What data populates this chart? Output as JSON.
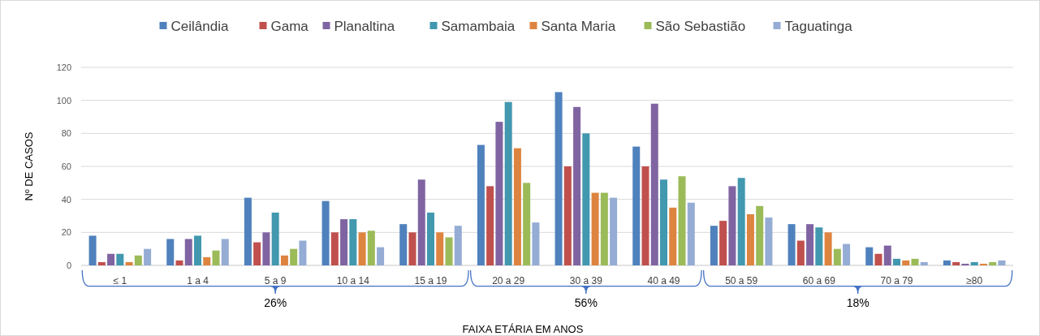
{
  "chart_data": {
    "type": "bar",
    "xlabel": "FAIXA ETÁRIA EM ANOS",
    "ylabel": "Nº DE CASOS",
    "categories": [
      "≤ 1",
      "1 a 4",
      "5 a 9",
      "10 a 14",
      "15 a 19",
      "20 a 29",
      "30 a 39",
      "40 a 49",
      "50 a 59",
      "60 a 69",
      "70 a 79",
      "≥80"
    ],
    "series": [
      {
        "name": "Ceilândia",
        "color": "#4f81bd",
        "values": [
          18,
          16,
          41,
          39,
          25,
          73,
          105,
          72,
          24,
          25,
          11,
          3
        ]
      },
      {
        "name": "Gama",
        "color": "#c0504d",
        "values": [
          2,
          3,
          14,
          20,
          20,
          48,
          60,
          60,
          27,
          15,
          7,
          2
        ]
      },
      {
        "name": "Planaltina",
        "color": "#8064a2",
        "values": [
          7,
          16,
          20,
          28,
          52,
          87,
          96,
          98,
          48,
          25,
          12,
          1
        ]
      },
      {
        "name": "Samambaia",
        "color": "#4198af",
        "values": [
          7,
          18,
          32,
          28,
          32,
          99,
          80,
          52,
          53,
          23,
          4,
          2
        ]
      },
      {
        "name": "Santa Maria",
        "color": "#dd8440",
        "values": [
          2,
          5,
          6,
          20,
          20,
          71,
          44,
          35,
          31,
          20,
          3,
          1
        ]
      },
      {
        "name": "São Sebastião",
        "color": "#9bbb59",
        "values": [
          6,
          9,
          10,
          21,
          17,
          50,
          44,
          54,
          36,
          10,
          4,
          2
        ]
      },
      {
        "name": "Taguatinga",
        "color": "#95acd4",
        "values": [
          10,
          16,
          15,
          11,
          24,
          26,
          41,
          38,
          29,
          13,
          2,
          3
        ]
      }
    ],
    "ylim": [
      0,
      120
    ],
    "yticks": [
      0,
      20,
      40,
      60,
      80,
      100,
      120
    ],
    "grid": "y",
    "legend": "top",
    "annotations": [
      "26%",
      "56%",
      "18%"
    ]
  }
}
